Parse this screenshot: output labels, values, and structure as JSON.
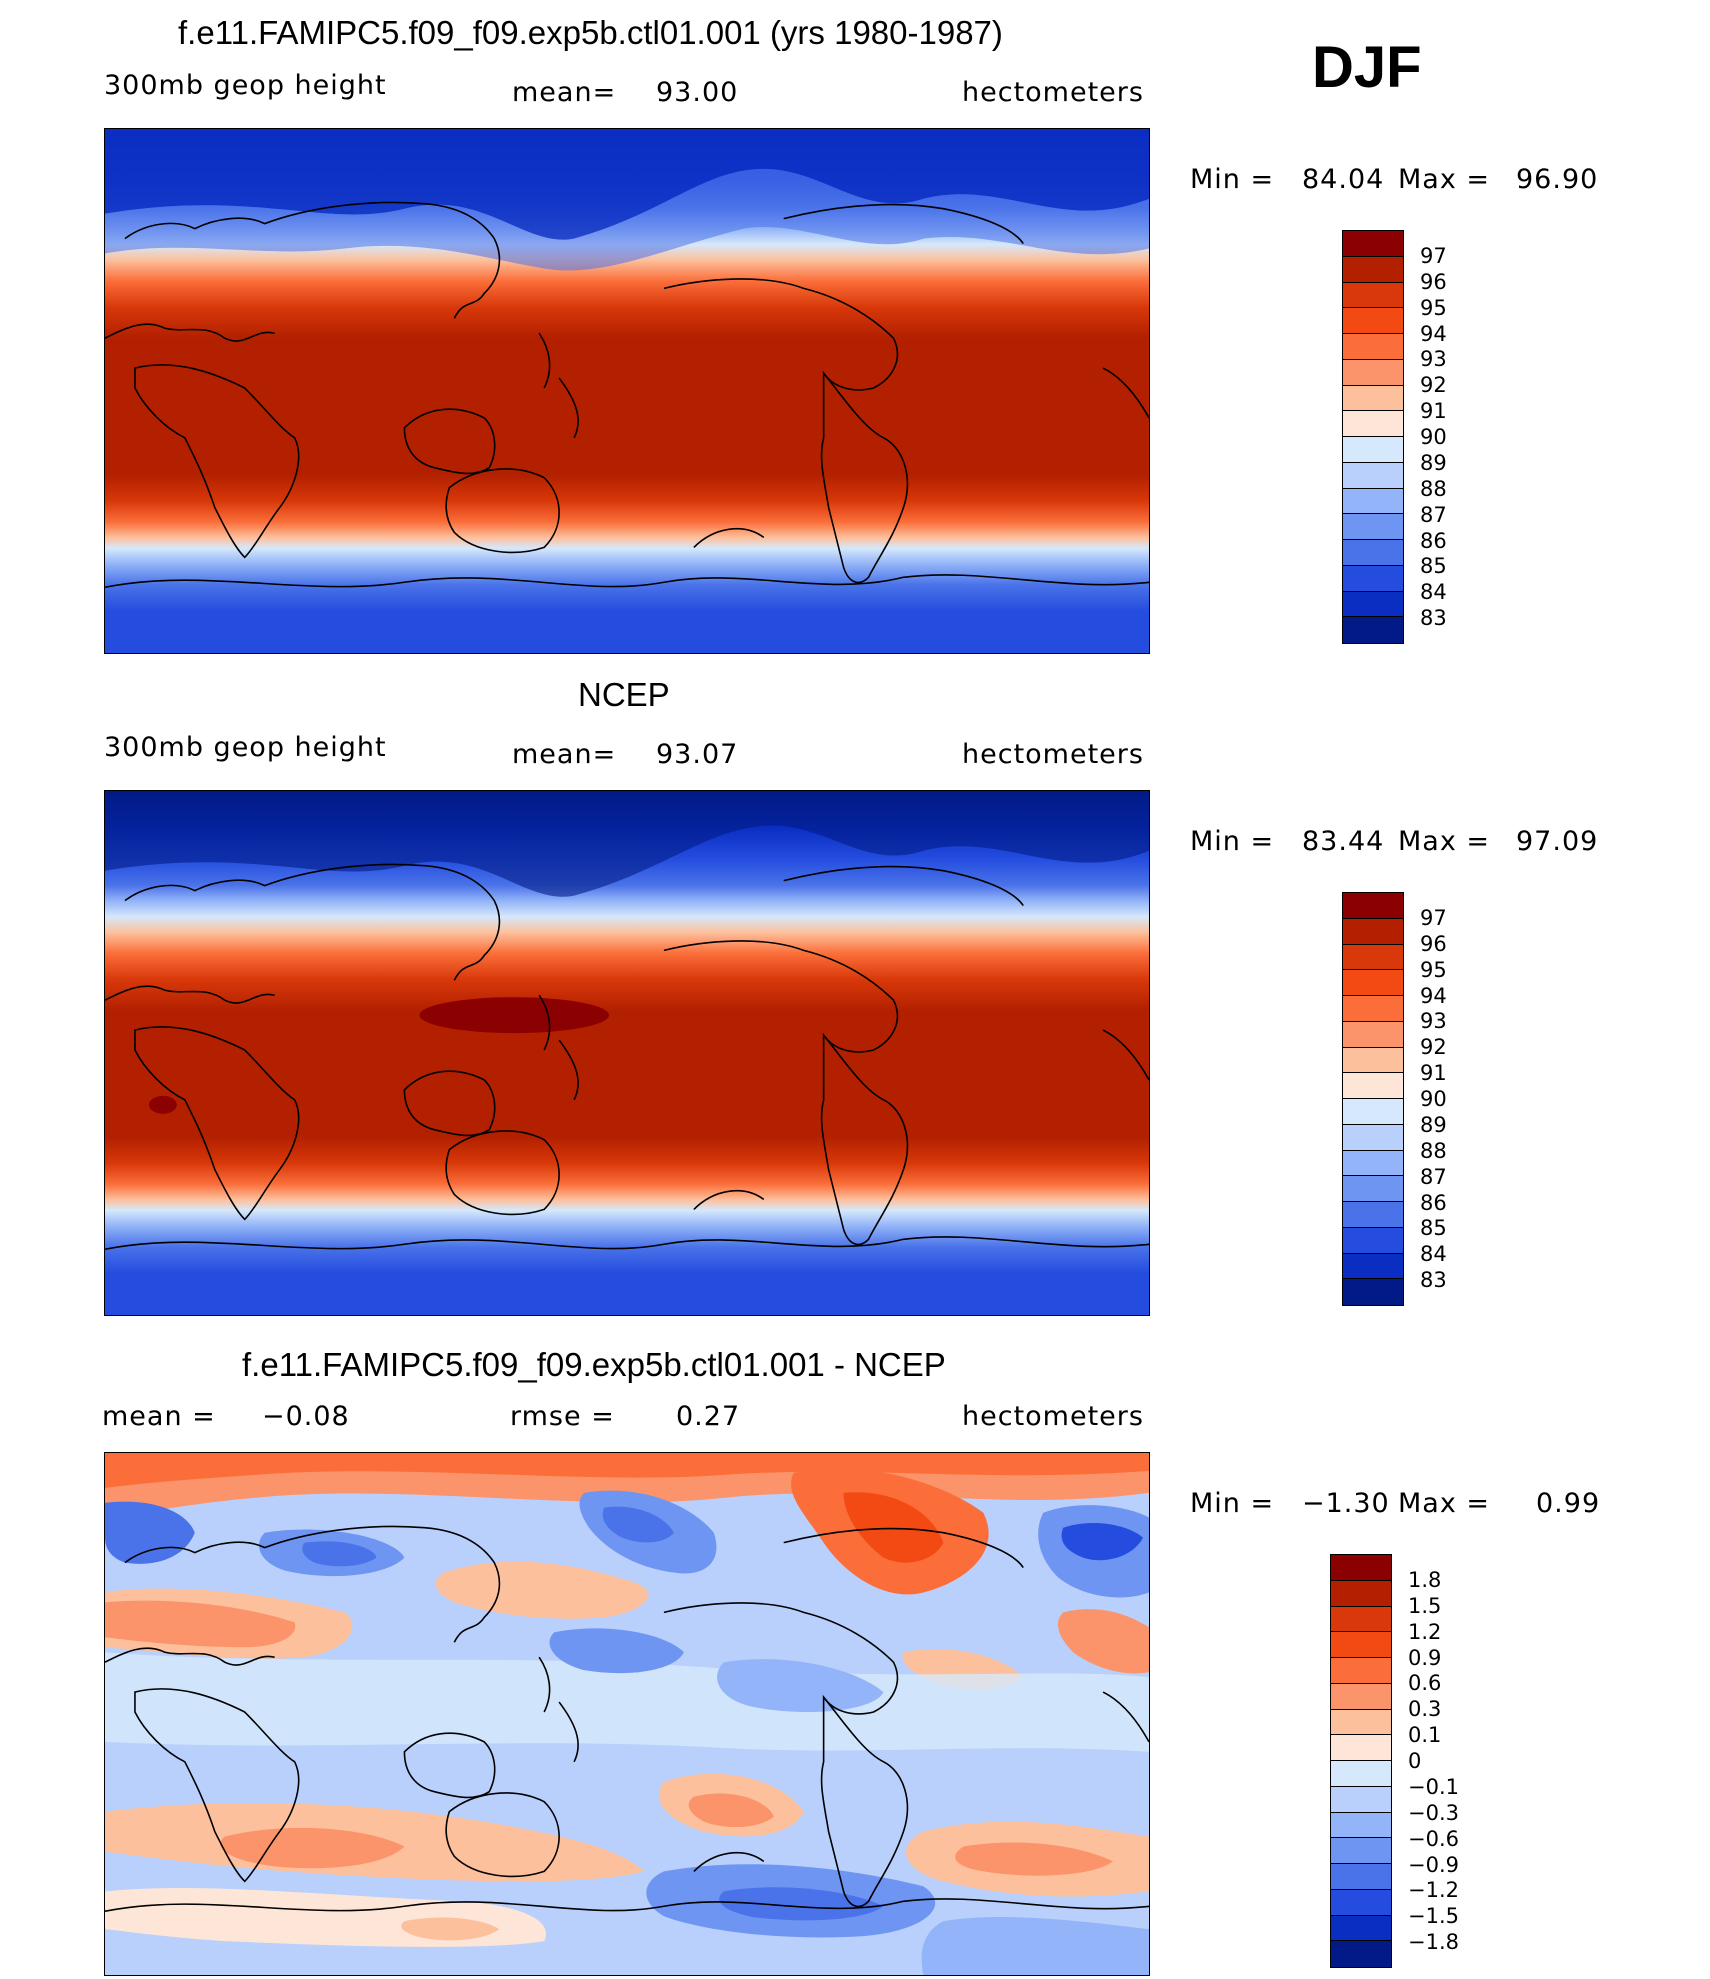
{
  "header": {
    "season": "DJF"
  },
  "panels": [
    {
      "title": "f.e11.FAMIPC5.f09_f09.exp5b.ctl01.001 (yrs 1980-1987)",
      "left_label": "300mb geop height",
      "stat_label": "mean=",
      "stat_value": "93.00",
      "units": "hectometers",
      "minmax": {
        "min_label": "Min =",
        "min": "84.04",
        "max_label": "Max =",
        "max": "96.90"
      },
      "colorbar": {
        "labels": [
          "97",
          "96",
          "95",
          "94",
          "93",
          "92",
          "91",
          "90",
          "89",
          "88",
          "87",
          "86",
          "85",
          "84",
          "83"
        ],
        "colors": [
          "#8b0000",
          "#b22000",
          "#d8380a",
          "#f24a12",
          "#fb6e3a",
          "#fb946a",
          "#fdc09c",
          "#fde6d8",
          "#d6e8fb",
          "#b8d0fb",
          "#93b4f8",
          "#6e95f1",
          "#4a73e9",
          "#244ddf",
          "#0a2ec2",
          "#011a86"
        ]
      }
    },
    {
      "title": "NCEP",
      "left_label": "300mb geop height",
      "stat_label": "mean=",
      "stat_value": "93.07",
      "units": "hectometers",
      "minmax": {
        "min_label": "Min =",
        "min": "83.44",
        "max_label": "Max =",
        "max": "97.09"
      },
      "colorbar": {
        "labels": [
          "97",
          "96",
          "95",
          "94",
          "93",
          "92",
          "91",
          "90",
          "89",
          "88",
          "87",
          "86",
          "85",
          "84",
          "83"
        ],
        "colors": [
          "#8b0000",
          "#b22000",
          "#d8380a",
          "#f24a12",
          "#fb6e3a",
          "#fb946a",
          "#fdc09c",
          "#fde6d8",
          "#d6e8fb",
          "#b8d0fb",
          "#93b4f8",
          "#6e95f1",
          "#4a73e9",
          "#244ddf",
          "#0a2ec2",
          "#011a86"
        ]
      }
    },
    {
      "title": "f.e11.FAMIPC5.f09_f09.exp5b.ctl01.001 - NCEP",
      "left_label": "mean =",
      "left_value": "−0.08",
      "stat_label": "rmse =",
      "stat_value": "0.27",
      "units": "hectometers",
      "minmax": {
        "min_label": "Min =",
        "min": "−1.30",
        "max_label": "Max =",
        "max": "0.99"
      },
      "colorbar": {
        "labels": [
          "1.8",
          "1.5",
          "1.2",
          "0.9",
          "0.6",
          "0.3",
          "0.1",
          "0",
          "−0.1",
          "−0.3",
          "−0.6",
          "−0.9",
          "−1.2",
          "−1.5",
          "−1.8"
        ],
        "colors": [
          "#8b0000",
          "#b22000",
          "#d8380a",
          "#f24a12",
          "#fb6e3a",
          "#fb946a",
          "#fdc09c",
          "#fde6d8",
          "#d6e8fb",
          "#b8d0fb",
          "#93b4f8",
          "#6e95f1",
          "#4a73e9",
          "#244ddf",
          "#0a2ec2",
          "#011a86"
        ]
      }
    }
  ]
}
